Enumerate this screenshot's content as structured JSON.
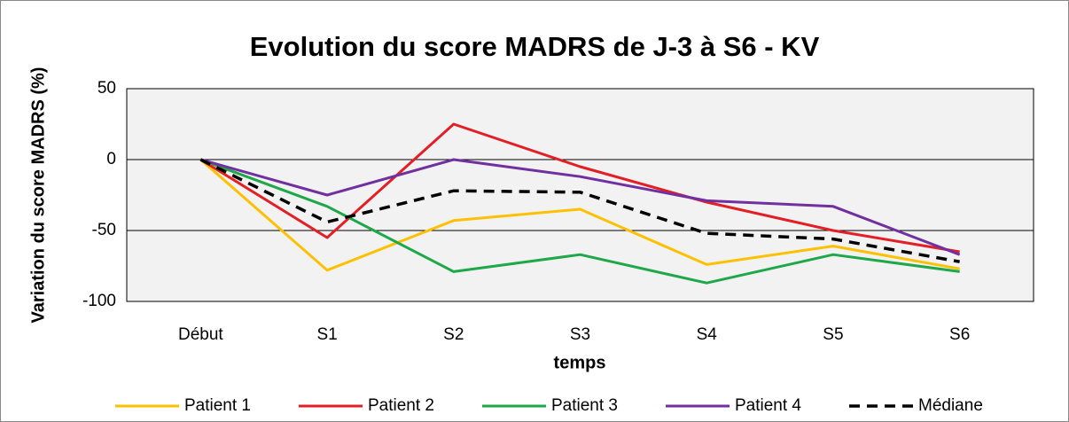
{
  "chart_data": {
    "type": "line",
    "title": "Evolution du score MADRS de J-3 à S6 - KV",
    "ylabel": "Variation du score MADRS (%)",
    "xlabel": "temps",
    "categories": [
      "Début",
      "S1",
      "S2",
      "S3",
      "S4",
      "S5",
      "S6"
    ],
    "ylim": [
      -100,
      50
    ],
    "yticks": [
      -100,
      -50,
      0,
      50
    ],
    "grid": true,
    "legend": "bottom",
    "series": [
      {
        "name": "Patient 1",
        "color": "#ffc000",
        "values": [
          0,
          -78,
          -43,
          -35,
          -74,
          -61,
          -77
        ]
      },
      {
        "name": "Patient 2",
        "color": "#e31f26",
        "values": [
          0,
          -55,
          25,
          -5,
          -30,
          -50,
          -65
        ]
      },
      {
        "name": "Patient 3",
        "color": "#1fa84a",
        "values": [
          0,
          -33,
          -79,
          -67,
          -87,
          -67,
          -79
        ]
      },
      {
        "name": "Patient 4",
        "color": "#7030a0",
        "values": [
          0,
          -25,
          0,
          -12,
          -29,
          -33,
          -67
        ]
      },
      {
        "name": "Médiane",
        "color": "#000000",
        "dashed": true,
        "values": [
          0,
          -44,
          -22,
          -23,
          -52,
          -56,
          -72
        ]
      }
    ]
  }
}
